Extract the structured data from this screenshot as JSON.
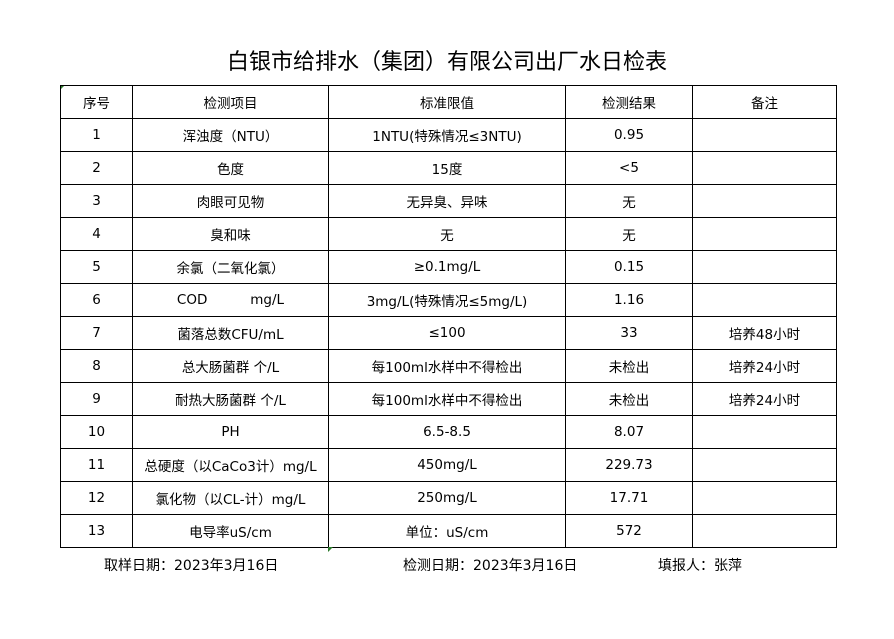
{
  "title": "白银市给排水（集团）有限公司出厂水日检表",
  "headers": [
    "序号",
    "检测项目",
    "标准限值",
    "检测结果",
    "备注"
  ],
  "rows": [
    [
      "1",
      "浑浊度（NTU）",
      "1NTU(特殊情况≤3NTU)",
      "0.95",
      ""
    ],
    [
      "2",
      "色度",
      "15度",
      "<5",
      ""
    ],
    [
      "3",
      "肉眼可见物",
      "无异臭、异味",
      "无",
      ""
    ],
    [
      "4",
      "臭和味",
      "无",
      "无",
      ""
    ],
    [
      "5",
      "余氯（二氧化氯）",
      "≥0.1mg/L",
      "0.15",
      ""
    ],
    [
      "6",
      "COD          mg/L",
      "3mg/L(特殊情况≤5mg/L)",
      "1.16",
      ""
    ],
    [
      "7",
      "菌落总数CFU/mL",
      "≤100",
      "33",
      "培养48小时"
    ],
    [
      "8",
      "总大肠菌群 个/L",
      "每100ml水样中不得检出",
      "未检出",
      "培养24小时"
    ],
    [
      "9",
      "耐热大肠菌群 个/L",
      "每100ml水样中不得检出",
      "未检出",
      "培养24小时"
    ],
    [
      "10",
      "PH",
      "6.5-8.5",
      "8.07",
      ""
    ],
    [
      "11",
      "总硬度（以CaCo3计）mg/L",
      "450mg/L",
      "229.73",
      ""
    ],
    [
      "12",
      "氯化物（以CL-计）mg/L",
      "250mg/L",
      "17.71",
      ""
    ],
    [
      "13",
      "电导率uS/cm",
      "单位：uS/cm",
      "572",
      ""
    ]
  ],
  "footer": {
    "sample_date": "取样日期：2023年3月16日",
    "test_date": "检测日期：2023年3月16日",
    "reporter": "填报人：张萍"
  }
}
